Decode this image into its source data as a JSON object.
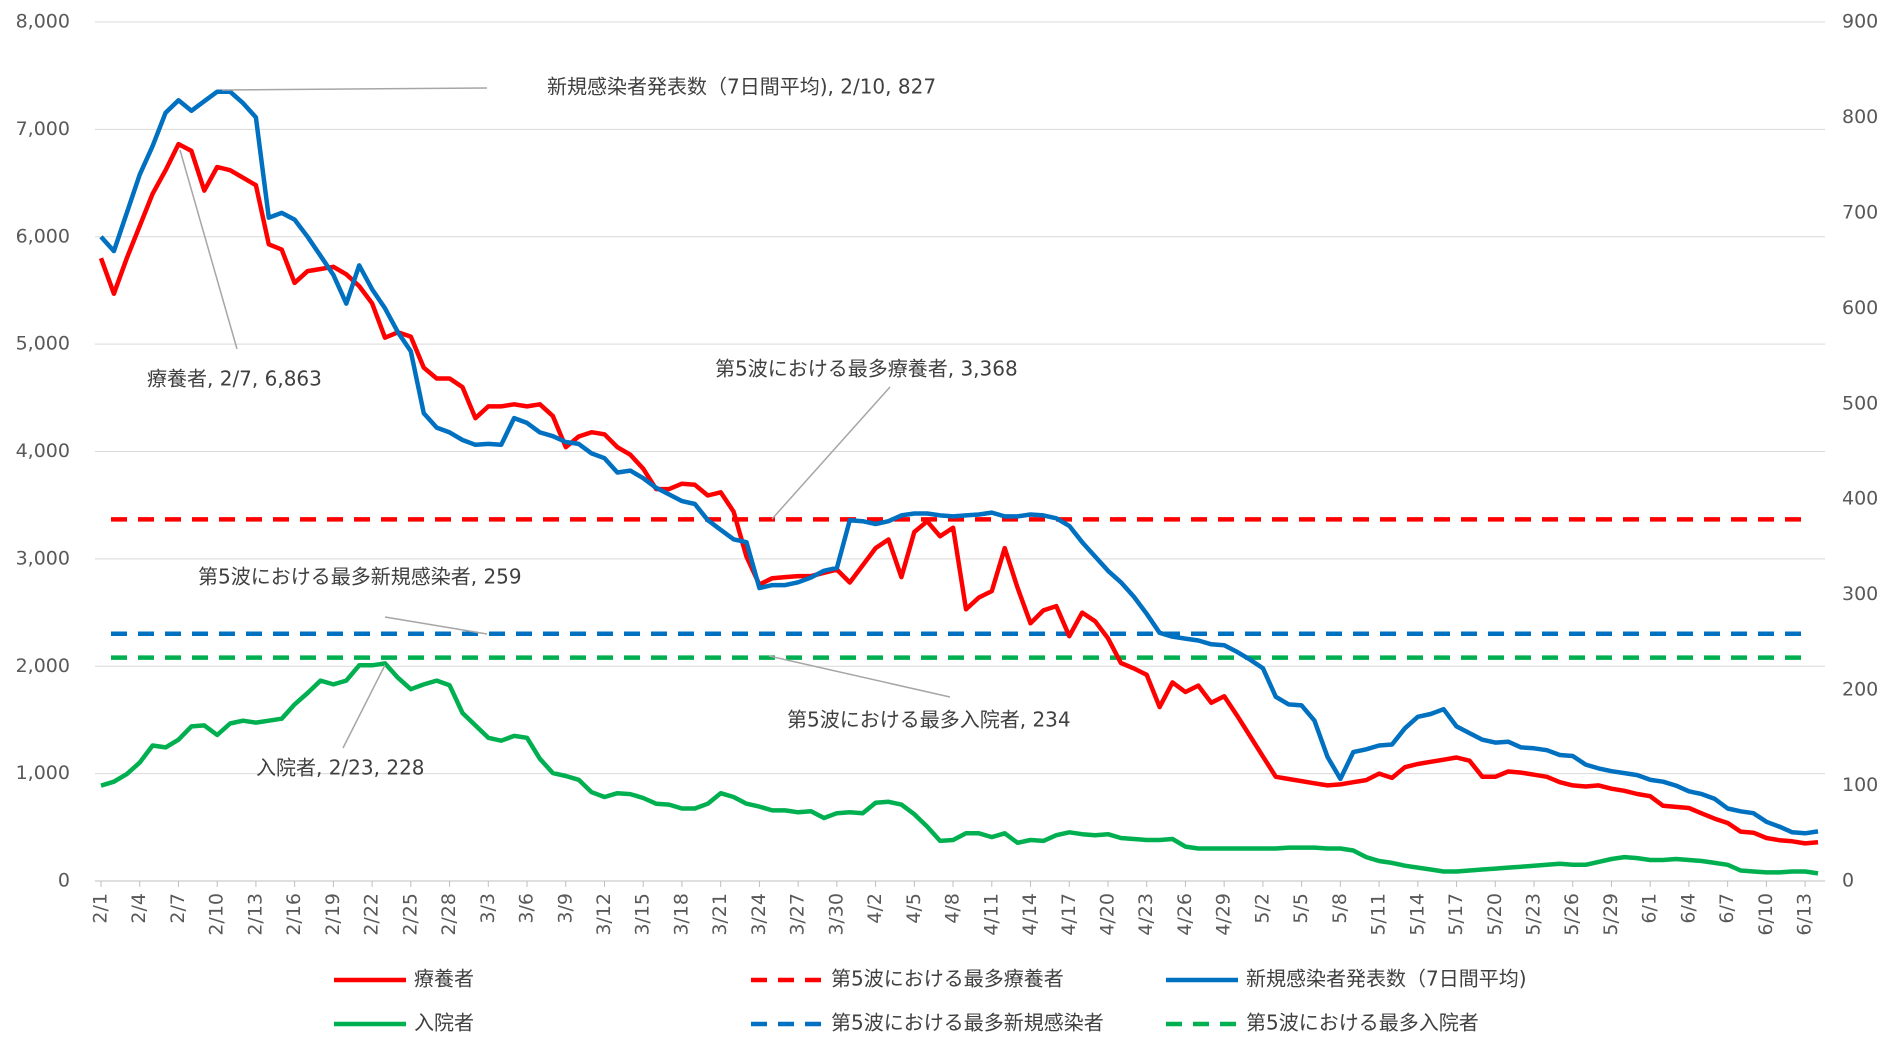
{
  "chart_data": {
    "type": "line",
    "categories": [
      "2/1",
      null,
      null,
      "2/4",
      null,
      null,
      "2/7",
      null,
      null,
      "2/10",
      null,
      null,
      "2/13",
      null,
      null,
      "2/16",
      null,
      null,
      "2/19",
      null,
      null,
      "2/22",
      null,
      null,
      "2/25",
      null,
      null,
      "2/28",
      null,
      null,
      "3/3",
      null,
      null,
      "3/6",
      null,
      null,
      "3/9",
      null,
      null,
      "3/12",
      null,
      null,
      "3/15",
      null,
      null,
      "3/18",
      null,
      null,
      "3/21",
      null,
      null,
      "3/24",
      null,
      null,
      "3/27",
      null,
      null,
      "3/30",
      null,
      null,
      "4/2",
      null,
      null,
      "4/5",
      null,
      null,
      "4/8",
      null,
      null,
      "4/11",
      null,
      null,
      "4/14",
      null,
      null,
      "4/17",
      null,
      null,
      "4/20",
      null,
      null,
      "4/23",
      null,
      null,
      "4/26",
      null,
      null,
      "4/29",
      null,
      null,
      "5/2",
      null,
      null,
      "5/5",
      null,
      null,
      "5/8",
      null,
      null,
      "5/11",
      null,
      null,
      "5/14",
      null,
      null,
      "5/17",
      null,
      null,
      "5/20",
      null,
      null,
      "5/23",
      null,
      null,
      "5/26",
      null,
      null,
      "5/29",
      null,
      null,
      "6/1",
      null,
      null,
      "6/4",
      null,
      null,
      "6/7",
      null,
      null,
      "6/10",
      null,
      null,
      "6/13",
      null
    ],
    "series": [
      {
        "name": "療養者",
        "color": "#ff0000",
        "axis": "y",
        "values": [
          5800,
          5470,
          5800,
          6100,
          6400,
          6620,
          6863,
          6800,
          6430,
          6650,
          6620,
          6550,
          6480,
          5930,
          5880,
          5570,
          5680,
          5700,
          5720,
          5650,
          5540,
          5380,
          5060,
          5110,
          5070,
          4780,
          4680,
          4680,
          4600,
          4310,
          4420,
          4420,
          4440,
          4420,
          4440,
          4330,
          4040,
          4140,
          4180,
          4160,
          4040,
          3970,
          3840,
          3650,
          3650,
          3700,
          3690,
          3590,
          3620,
          3440,
          3020,
          2760,
          2820,
          2830,
          2840,
          2840,
          2870,
          2900,
          2780,
          2940,
          3100,
          3180,
          2830,
          3250,
          3350,
          3210,
          3290,
          2530,
          2640,
          2700,
          3100,
          2730,
          2400,
          2520,
          2560,
          2280,
          2500,
          2420,
          2260,
          2030,
          1980,
          1920,
          1620,
          1850,
          1760,
          1820,
          1660,
          1720,
          1540,
          1350,
          1160,
          970,
          950,
          930,
          910,
          890,
          900,
          920,
          940,
          1000,
          960,
          1060,
          1090,
          1110,
          1130,
          1150,
          1120,
          970,
          970,
          1020,
          1010,
          990,
          970,
          920,
          890,
          880,
          890,
          860,
          840,
          810,
          790,
          700,
          690,
          680,
          630,
          580,
          540,
          460,
          450,
          400,
          380,
          370,
          350,
          360
        ]
      },
      {
        "name": "新規感染者発表数（7日間平均)",
        "color": "#0070c0",
        "axis": "y2",
        "values": [
          675,
          660,
          700,
          740,
          770,
          805,
          818,
          807,
          817,
          827,
          827,
          815,
          800,
          695,
          700,
          693,
          675,
          655,
          635,
          605,
          645,
          620,
          600,
          575,
          555,
          490,
          475,
          470,
          462,
          457,
          458,
          457,
          485,
          480,
          470,
          466,
          460,
          458,
          448,
          443,
          428,
          430,
          422,
          412,
          405,
          398,
          395,
          378,
          368,
          358,
          355,
          307,
          310,
          310,
          313,
          318,
          325,
          328,
          378,
          377,
          374,
          377,
          383,
          385,
          385,
          383,
          382,
          383,
          384,
          386,
          382,
          382,
          384,
          383,
          380,
          372,
          355,
          340,
          325,
          313,
          298,
          280,
          260,
          256,
          254,
          252,
          248,
          247,
          240,
          232,
          223,
          193,
          185,
          184,
          168,
          130,
          107,
          135,
          138,
          142,
          143,
          160,
          172,
          175,
          180,
          162,
          155,
          148,
          145,
          146,
          140,
          139,
          137,
          132,
          131,
          122,
          118,
          115,
          113,
          111,
          106,
          104,
          100,
          94,
          91,
          86,
          76,
          73,
          71,
          62,
          57,
          51,
          50,
          52
        ]
      },
      {
        "name": "入院者",
        "color": "#00b050",
        "axis": "y2",
        "values": [
          100,
          104,
          112,
          124,
          142,
          140,
          148,
          162,
          163,
          153,
          165,
          168,
          166,
          168,
          170,
          185,
          197,
          210,
          206,
          210,
          226,
          226,
          228,
          213,
          201,
          206,
          210,
          205,
          176,
          163,
          150,
          147,
          152,
          150,
          128,
          113,
          110,
          106,
          93,
          88,
          92,
          91,
          87,
          81,
          80,
          76,
          76,
          81,
          92,
          88,
          81,
          78,
          74,
          74,
          72,
          73,
          66,
          71,
          72,
          71,
          82,
          83,
          80,
          70,
          57,
          42,
          43,
          50,
          50,
          46,
          50,
          40,
          43,
          42,
          48,
          51,
          49,
          48,
          49,
          45,
          44,
          43,
          43,
          44,
          36,
          34,
          34,
          34,
          34,
          34,
          34,
          34,
          35,
          35,
          35,
          34,
          34,
          32,
          25,
          21,
          19,
          16,
          14,
          12,
          10,
          10,
          11,
          12,
          13,
          14,
          15,
          16,
          17,
          18,
          17,
          17,
          20,
          23,
          25,
          24,
          22,
          22,
          23,
          22,
          21,
          19,
          17,
          11,
          10,
          9,
          9,
          10,
          10,
          8
        ]
      }
    ],
    "reference_lines": [
      {
        "name": "第5波における最多療養者",
        "value": 3368,
        "axis": "y",
        "color": "#ff0000"
      },
      {
        "name": "第5波における最多新規感染者",
        "value": 259,
        "axis": "y2",
        "color": "#0070c0"
      },
      {
        "name": "第5波における最多入院者",
        "value": 234,
        "axis": "y2",
        "color": "#00b050"
      }
    ],
    "annotations": [
      "新規感染者発表数（7日間平均), 2/10, 827",
      "療養者, 2/7, 6,863",
      "第5波における最多療養者, 3,368",
      "第5波における最多新規感染者, 259",
      "第5波における最多入院者, 234",
      "入院者, 2/23, 228"
    ],
    "ylim": [
      0,
      8000
    ],
    "yticks": [
      0,
      {
        "value": 1000,
        "label": "1,000"
      },
      {
        "value": 2000,
        "label": "2,000"
      },
      {
        "value": 3000,
        "label": "3,000"
      },
      {
        "value": 4000,
        "label": "4,000"
      },
      {
        "value": 5000,
        "label": "5,000"
      },
      {
        "value": 6000,
        "label": "6,000"
      },
      {
        "value": 7000,
        "label": "7,000"
      },
      {
        "value": 8000,
        "label": "8,000"
      }
    ],
    "y2lim": [
      0,
      900
    ],
    "y2ticks": [
      0,
      100,
      200,
      300,
      400,
      500,
      600,
      700,
      800,
      900
    ],
    "grid": true
  }
}
